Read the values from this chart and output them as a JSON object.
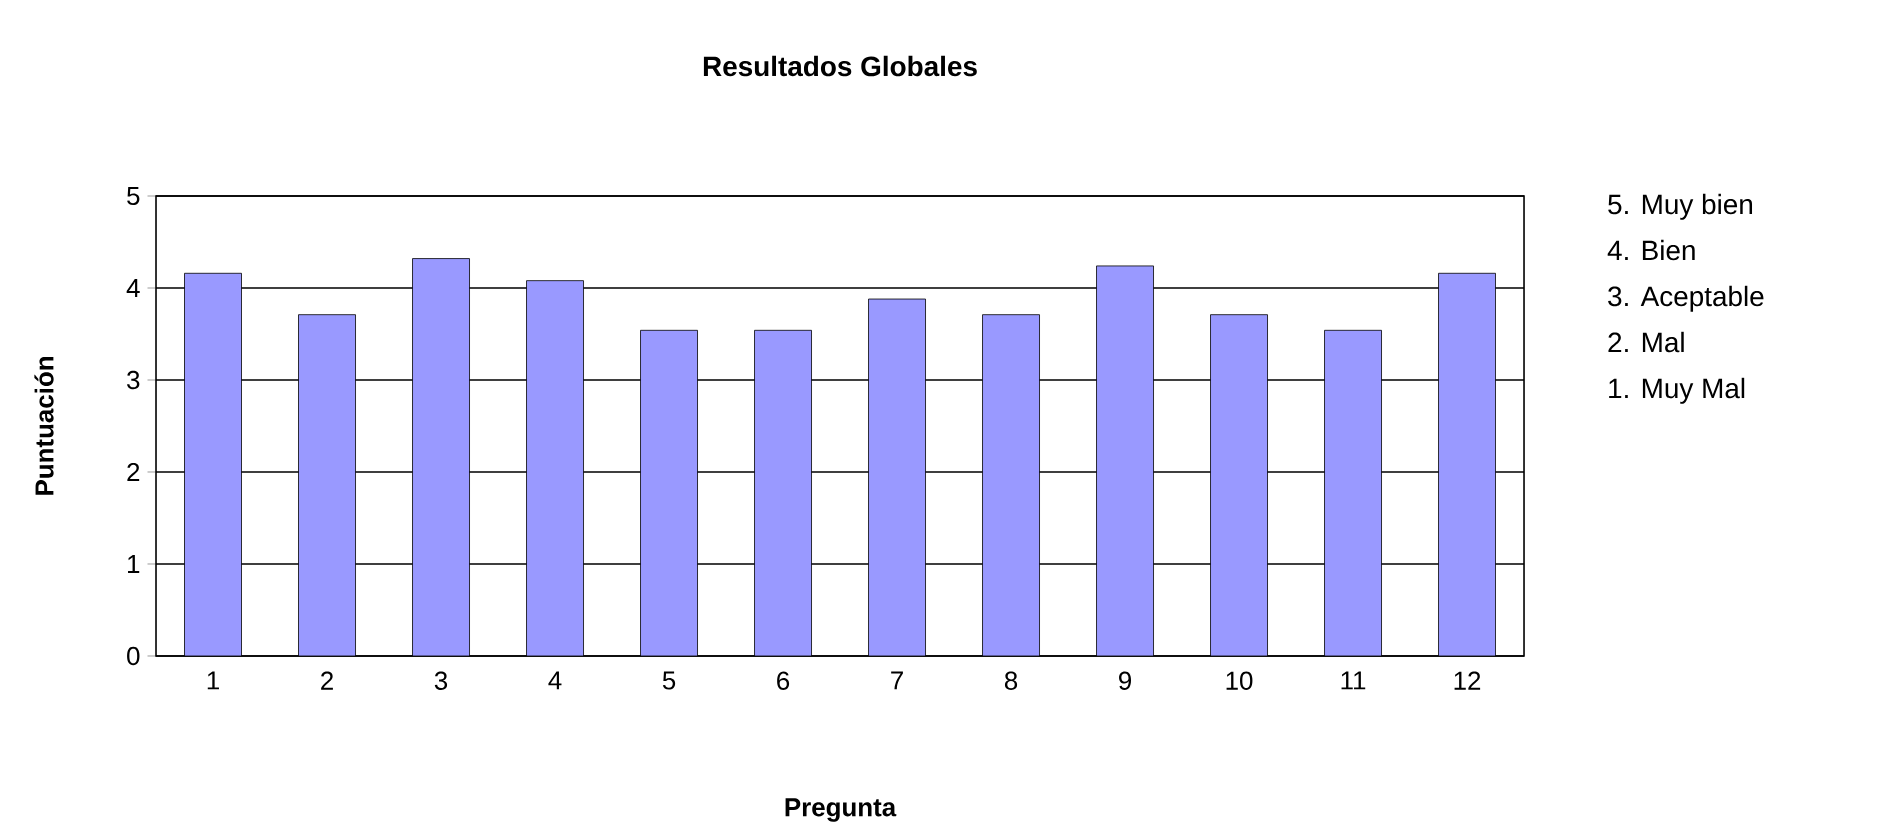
{
  "chart_data": {
    "type": "bar",
    "title": "Resultados Globales",
    "xlabel": "Pregunta",
    "ylabel": "Puntuación",
    "categories": [
      "1",
      "2",
      "3",
      "4",
      "5",
      "6",
      "7",
      "8",
      "9",
      "10",
      "11",
      "12"
    ],
    "values": [
      4.16,
      3.71,
      4.32,
      4.08,
      3.54,
      3.54,
      3.88,
      3.71,
      4.24,
      3.71,
      3.54,
      4.16
    ],
    "color": "#9999ff",
    "ylim": [
      0,
      5
    ],
    "yticks": [
      0,
      1,
      2,
      3,
      4,
      5
    ],
    "grid": "y",
    "annotations": [
      "5. Muy bien",
      "4. Bien",
      "3. Aceptable",
      "2. Mal",
      "1. Muy Mal"
    ]
  }
}
